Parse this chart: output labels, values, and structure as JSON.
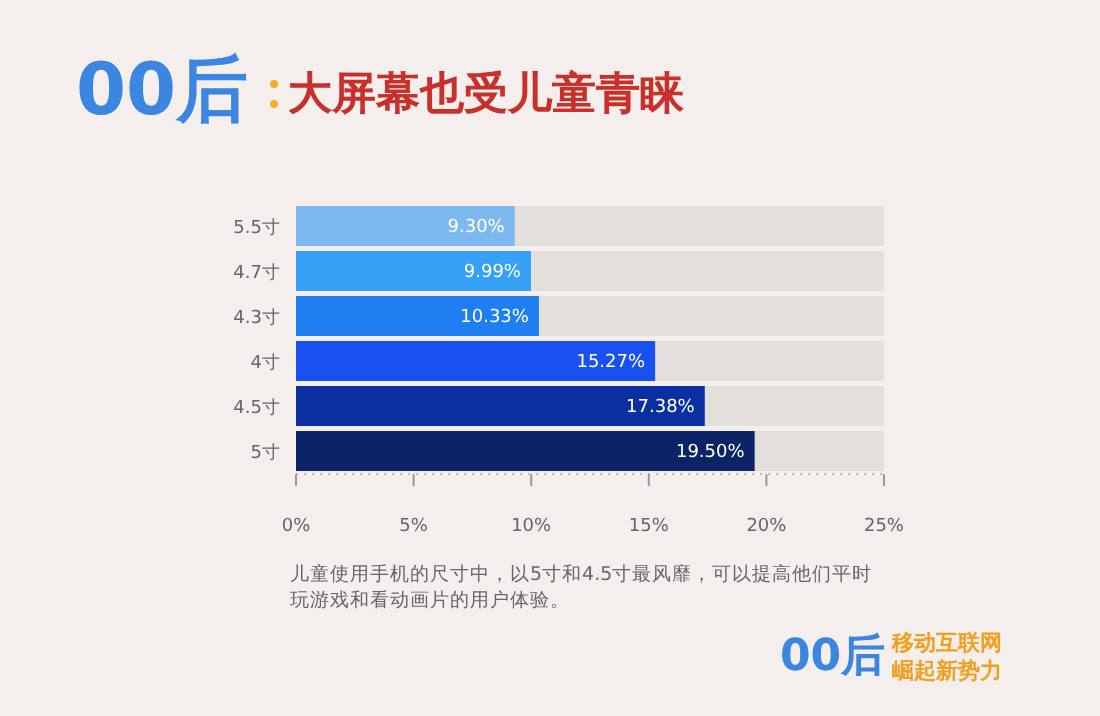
{
  "chart_data": {
    "type": "bar",
    "orientation": "horizontal",
    "title": "00后",
    "subtitle": "大屏幕也受儿童青睐",
    "categories": [
      "5.5寸",
      "4.7寸",
      "4.3寸",
      "4寸",
      "4.5寸",
      "5寸"
    ],
    "values": [
      9.3,
      9.99,
      10.33,
      15.27,
      17.38,
      19.5
    ],
    "value_labels": [
      "9.30%",
      "9.99%",
      "10.33%",
      "15.27%",
      "17.38%",
      "19.50%"
    ],
    "colors": [
      "#7cb9ef",
      "#35a0f5",
      "#1f7ff0",
      "#1a4ff0",
      "#0a2fa0",
      "#0a2466"
    ],
    "xlim": [
      0,
      25
    ],
    "xticks": [
      {
        "value": 0,
        "label": "0%"
      },
      {
        "value": 5,
        "label": "5%"
      },
      {
        "value": 10,
        "label": "10%"
      },
      {
        "value": 15,
        "label": "15%"
      },
      {
        "value": 20,
        "label": "20%"
      },
      {
        "value": 25,
        "label": "25%"
      }
    ],
    "grid": false,
    "legend": false,
    "annotations": [
      "儿童使用手机的尺寸中，以5寸和4.5寸最风靡，可以提高他们平时玩游戏和看动画片的用户体验。",
      "00后",
      "移动互联网",
      "崛起新势力"
    ]
  }
}
